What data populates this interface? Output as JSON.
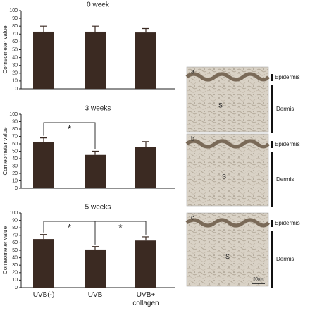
{
  "chart_data": [
    {
      "type": "bar",
      "title": "0 week",
      "ylabel": "Corneometer value",
      "categories": [
        null,
        null,
        null
      ],
      "values": [
        73,
        73,
        72
      ],
      "errors": [
        7,
        7,
        5
      ],
      "color": "#3b2a22",
      "ylim": [
        0,
        100
      ],
      "yticks": [
        0,
        10,
        20,
        30,
        40,
        50,
        60,
        70,
        80,
        90,
        100
      ],
      "significance": []
    },
    {
      "type": "bar",
      "title": "3 weeks",
      "ylabel": "Corneometer value",
      "categories": [
        null,
        null,
        null
      ],
      "values": [
        62,
        45,
        56
      ],
      "errors": [
        6,
        5,
        7
      ],
      "color": "#3b2a22",
      "ylim": [
        0,
        100
      ],
      "yticks": [
        0,
        10,
        20,
        30,
        40,
        50,
        60,
        70,
        80,
        90,
        100
      ],
      "significance": [
        {
          "label": "*",
          "groups": [
            0,
            1
          ]
        }
      ]
    },
    {
      "type": "bar",
      "title": "5 weeks",
      "ylabel": "Corneometer value",
      "categories": [
        "UVB(-)",
        "UVB",
        "UVB+ collagen"
      ],
      "values": [
        65,
        51,
        63
      ],
      "errors": [
        6,
        4,
        5
      ],
      "color": "#3b2a22",
      "ylim": [
        0,
        100
      ],
      "yticks": [
        0,
        10,
        20,
        30,
        40,
        50,
        60,
        70,
        80,
        90,
        100
      ],
      "significance": [
        {
          "label": "*",
          "groups": [
            0,
            1
          ]
        },
        {
          "label": "*",
          "groups": [
            1,
            2
          ]
        }
      ]
    }
  ],
  "micrographs": {
    "panels": [
      {
        "label": "a",
        "layers": [
          "Epidermis",
          "Dermis"
        ],
        "marker": "S"
      },
      {
        "label": "b",
        "layers": [
          "Epidermis",
          "Dermis"
        ],
        "marker": "S"
      },
      {
        "label": "c",
        "layers": [
          "Epidermis",
          "Dermis"
        ],
        "marker": "S"
      }
    ],
    "scale_bar": "50µm"
  }
}
